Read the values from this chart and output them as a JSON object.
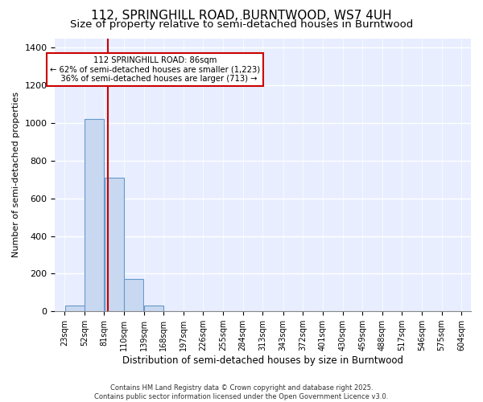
{
  "title": "112, SPRINGHILL ROAD, BURNTWOOD, WS7 4UH",
  "subtitle": "Size of property relative to semi-detached houses in Burntwood",
  "xlabel": "Distribution of semi-detached houses by size in Burntwood",
  "ylabel": "Number of semi-detached properties",
  "bin_edges": [
    23,
    52,
    81,
    110,
    139,
    168,
    197,
    226,
    255,
    284,
    313,
    343,
    372,
    401,
    430,
    459,
    488,
    517,
    546,
    575,
    604
  ],
  "bar_heights": [
    30,
    1020,
    710,
    170,
    30,
    0,
    0,
    0,
    0,
    0,
    0,
    0,
    0,
    0,
    0,
    0,
    0,
    0,
    0,
    0
  ],
  "bar_color": "#c8d8f0",
  "bar_edge_color": "#6699cc",
  "property_size": 86,
  "red_line_color": "#cc0000",
  "annotation_line1": "112 SPRINGHILL ROAD: 86sqm",
  "annotation_line2": "← 62% of semi-detached houses are smaller (1,223)",
  "annotation_line3": "   36% of semi-detached houses are larger (713) →",
  "annotation_box_color": "#cc0000",
  "ylim": [
    0,
    1450
  ],
  "background_color": "#e8eeff",
  "grid_color": "#ffffff",
  "footer_text": "Contains HM Land Registry data © Crown copyright and database right 2025.\nContains public sector information licensed under the Open Government Licence v3.0.",
  "title_fontsize": 11,
  "subtitle_fontsize": 9.5,
  "tick_fontsize": 7,
  "ylabel_fontsize": 8,
  "xlabel_fontsize": 8.5,
  "footer_fontsize": 6
}
